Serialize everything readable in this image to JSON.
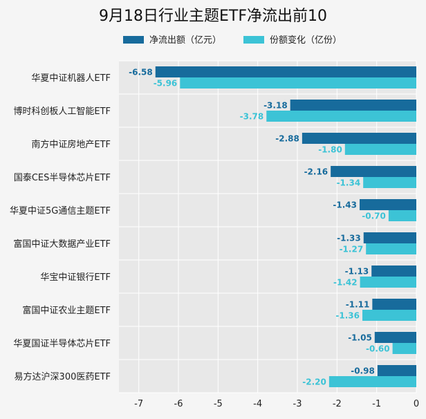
{
  "chart_data": {
    "type": "bar",
    "orientation": "horizontal",
    "title": "9月18日行业主题ETF净流出前10",
    "categories": [
      "华夏中证机器人ETF",
      "博时科创板人工智能ETF",
      "南方中证房地产ETF",
      "国泰CES半导体芯片ETF",
      "华夏中证5G通信主题ETF",
      "富国中证大数据产业ETF",
      "华宝中证银行ETF",
      "富国中证农业主题ETF",
      "华夏国证半导体芯片ETF",
      "易方达沪深300医药ETF"
    ],
    "series": [
      {
        "name": "净流出额（亿元）",
        "color": "#176b9c",
        "values": [
          -6.58,
          -3.18,
          -2.88,
          -2.16,
          -1.43,
          -1.33,
          -1.13,
          -1.11,
          -1.05,
          -0.98
        ],
        "labels": [
          "-6.58",
          "-3.18",
          "-2.88",
          "-2.16",
          "-1.43",
          "-1.33",
          "-1.13",
          "-1.11",
          "-1.05",
          "-0.98"
        ]
      },
      {
        "name": "份额变化（亿份）",
        "color": "#3cc3d6",
        "values": [
          -5.96,
          -3.78,
          -1.8,
          -1.34,
          -0.7,
          -1.27,
          -1.42,
          -1.36,
          -0.6,
          -2.2
        ],
        "labels": [
          "-5.96",
          "-3.78",
          "-1.80",
          "-1.34",
          "-0.70",
          "-1.27",
          "-1.42",
          "-1.36",
          "-0.60",
          "-2.20"
        ]
      }
    ],
    "xlim": [
      -7.5,
      0
    ],
    "xticks": [
      -7,
      -6,
      -5,
      -4,
      -3,
      -2,
      -1,
      0
    ],
    "xtick_labels": [
      "-7",
      "-6",
      "-5",
      "-4",
      "-3",
      "-2",
      "-1",
      "0"
    ],
    "xlabel": "",
    "ylabel": "",
    "grid": true,
    "legend_position": "top"
  }
}
